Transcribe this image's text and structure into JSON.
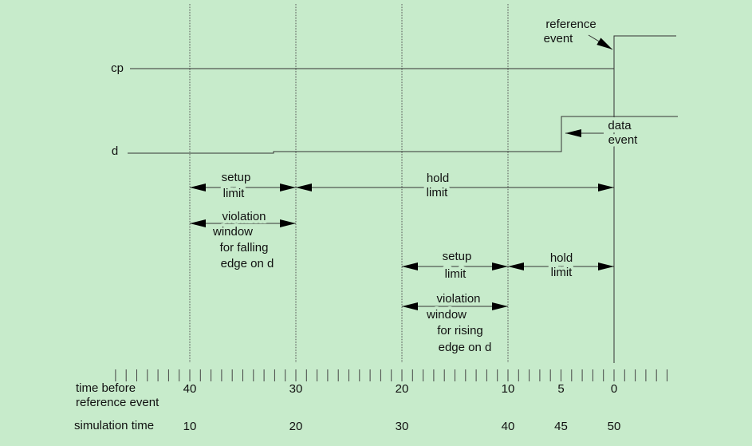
{
  "signals": [
    {
      "label": "cp"
    },
    {
      "label": "d"
    }
  ],
  "annotations": {
    "reference_event": [
      "reference",
      "event"
    ],
    "data_event": [
      "data",
      "event"
    ],
    "setup_limit_falling": [
      "setup",
      "limit"
    ],
    "hold_limit_falling": [
      "hold",
      "limit"
    ],
    "violation_falling": [
      "violation",
      "window",
      "for falling",
      "edge on d"
    ],
    "setup_limit_rising": [
      "setup",
      "limit"
    ],
    "hold_limit_rising": [
      "hold",
      "limit"
    ],
    "violation_rising": [
      "violation",
      "window",
      "for rising",
      "edge on d"
    ]
  },
  "axis": {
    "time_before_label": [
      "time before",
      "reference event"
    ],
    "time_before_ticks": [
      40,
      30,
      20,
      10,
      5,
      0
    ],
    "simulation_time_label": "simulation time",
    "simulation_ticks": [
      10,
      20,
      30,
      40,
      45,
      50
    ]
  }
}
